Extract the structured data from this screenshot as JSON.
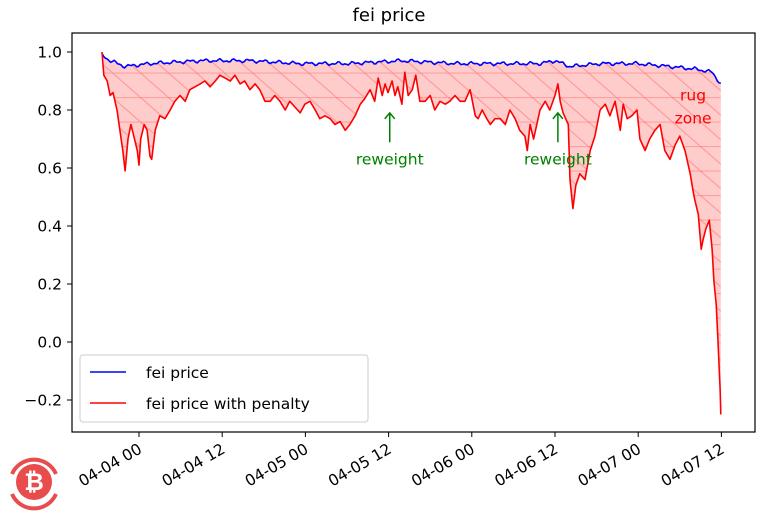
{
  "chart_data": {
    "type": "line",
    "title": "fei price",
    "xlabel": "",
    "ylabel": "",
    "ylim": [
      -0.31,
      1.065
    ],
    "xlim": [
      "04-03 14:20",
      "04-07 16:30"
    ],
    "grid": false,
    "legend_placement": "lower-left",
    "y_ticks": [
      "1.0",
      "0.8",
      "0.6",
      "0.4",
      "0.2",
      "0.0",
      "−0.2"
    ],
    "y_tick_values": [
      1.0,
      0.8,
      0.6,
      0.4,
      0.2,
      0.0,
      -0.2
    ],
    "x_ticks": [
      "04-04 00",
      "04-04 12",
      "04-05 00",
      "04-05 12",
      "04-06 00",
      "04-06 12",
      "04-07 00",
      "04-07 12"
    ],
    "x_tick_values": [
      "04-04 00:00",
      "04-04 12:00",
      "04-05 00:00",
      "04-05 12:00",
      "04-06 00:00",
      "04-06 12:00",
      "04-07 00:00",
      "04-07 12:00"
    ],
    "series": [
      {
        "name": "fei price",
        "color": "#0000ff",
        "x": [
          "04-03 18:40",
          "04-03 19:50",
          "04-03 22:00",
          "04-04 01:35",
          "04-04 08:50",
          "04-04 16:00",
          "04-04 23:15",
          "04-05 06:25",
          "04-05 13:55",
          "04-05 21:35",
          "04-06 04:05",
          "04-06 09:50",
          "04-06 12:00",
          "04-06 14:10",
          "04-06 18:30",
          "04-06 23:50",
          "04-07 04:35",
          "04-07 08:40",
          "04-07 10:40",
          "04-07 11:55"
        ],
        "y": [
          0.99,
          0.97,
          0.95,
          0.96,
          0.97,
          0.97,
          0.96,
          0.96,
          0.97,
          0.96,
          0.96,
          0.96,
          0.97,
          0.95,
          0.96,
          0.96,
          0.95,
          0.94,
          0.93,
          0.89
        ]
      },
      {
        "name": "fei price with penalty",
        "color": "#ff0000",
        "x": [
          "04-03 18:40",
          "04-03 18:55",
          "04-03 19:25",
          "04-03 19:50",
          "04-03 20:15",
          "04-03 20:50",
          "04-03 21:15",
          "04-03 21:40",
          "04-03 22:00",
          "04-03 22:25",
          "04-03 22:50",
          "04-03 23:15",
          "04-03 23:45",
          "04-04 00:00",
          "04-04 00:15",
          "04-04 00:45",
          "04-04 01:10",
          "04-04 01:35",
          "04-04 01:50",
          "04-04 02:20",
          "04-04 03:00",
          "04-04 03:45",
          "04-04 04:30",
          "04-04 05:10",
          "04-04 05:55",
          "04-04 06:40",
          "04-04 07:20",
          "04-04 08:05",
          "04-04 08:50",
          "04-04 09:30",
          "04-04 10:15",
          "04-04 11:00",
          "04-04 11:40",
          "04-04 12:25",
          "04-04 13:10",
          "04-04 13:50",
          "04-04 14:35",
          "04-04 15:15",
          "04-04 16:00",
          "04-04 16:45",
          "04-04 17:25",
          "04-04 18:10",
          "04-04 18:55",
          "04-04 19:35",
          "04-04 20:20",
          "04-04 21:05",
          "04-04 21:45",
          "04-04 22:30",
          "04-04 23:15",
          "04-04 23:55",
          "04-05 00:40",
          "04-05 01:25",
          "04-05 02:05",
          "04-05 02:50",
          "04-05 03:35",
          "04-05 04:15",
          "04-05 05:00",
          "04-05 05:45",
          "04-05 06:25",
          "04-05 07:10",
          "04-05 07:55",
          "04-05 08:35",
          "04-05 09:20",
          "04-05 10:00",
          "04-05 10:30",
          "04-05 11:05",
          "04-05 11:30",
          "04-05 11:55",
          "04-05 12:30",
          "04-05 12:55",
          "04-05 13:20",
          "04-05 13:55",
          "04-05 14:20",
          "04-05 14:50",
          "04-05 15:25",
          "04-05 15:55",
          "04-05 16:30",
          "04-05 17:15",
          "04-05 18:00",
          "04-05 18:40",
          "04-05 19:25",
          "04-05 20:10",
          "04-05 20:50",
          "04-05 21:35",
          "04-05 22:20",
          "04-05 23:00",
          "04-05 23:45",
          "04-06 00:30",
          "04-06 00:55",
          "04-06 01:30",
          "04-06 02:10",
          "04-06 02:40",
          "04-06 03:20",
          "04-06 04:05",
          "04-06 04:50",
          "04-06 05:30",
          "04-06 06:15",
          "04-06 06:55",
          "04-06 07:40",
          "04-06 08:00",
          "04-06 08:25",
          "04-06 08:55",
          "04-06 09:50",
          "04-06 10:35",
          "04-06 11:15",
          "04-06 12:00",
          "04-06 12:25",
          "04-06 12:45",
          "04-06 13:10",
          "04-06 13:55",
          "04-06 14:10",
          "04-06 14:35",
          "04-06 15:00",
          "04-06 15:35",
          "04-06 16:20",
          "04-06 17:05",
          "04-06 17:45",
          "04-06 18:30",
          "04-06 19:15",
          "04-06 19:55",
          "04-06 20:40",
          "04-06 21:25",
          "04-06 21:50",
          "04-06 22:25",
          "04-06 23:05",
          "04-06 23:50",
          "04-07 00:15",
          "04-07 01:00",
          "04-07 01:40",
          "04-07 02:25",
          "04-07 03:10",
          "04-07 03:50",
          "04-07 04:35",
          "04-07 05:20",
          "04-07 06:00",
          "04-07 06:45",
          "04-07 07:30",
          "04-07 07:55",
          "04-07 08:10",
          "04-07 08:40",
          "04-07 09:05",
          "04-07 09:20",
          "04-07 09:45",
          "04-07 10:15",
          "04-07 10:40",
          "04-07 10:55",
          "04-07 11:15",
          "04-07 11:30",
          "04-07 11:50",
          "04-07 11:55"
        ],
        "y": [
          1.0,
          0.92,
          0.9,
          0.85,
          0.86,
          0.8,
          0.73,
          0.66,
          0.59,
          0.7,
          0.75,
          0.71,
          0.66,
          0.61,
          0.7,
          0.75,
          0.73,
          0.64,
          0.63,
          0.73,
          0.78,
          0.77,
          0.8,
          0.83,
          0.85,
          0.83,
          0.87,
          0.88,
          0.89,
          0.9,
          0.88,
          0.9,
          0.92,
          0.91,
          0.9,
          0.92,
          0.89,
          0.9,
          0.87,
          0.89,
          0.87,
          0.83,
          0.83,
          0.85,
          0.83,
          0.8,
          0.83,
          0.81,
          0.79,
          0.82,
          0.83,
          0.8,
          0.77,
          0.78,
          0.77,
          0.75,
          0.76,
          0.73,
          0.75,
          0.78,
          0.82,
          0.84,
          0.87,
          0.83,
          0.91,
          0.85,
          0.89,
          0.86,
          0.9,
          0.85,
          0.88,
          0.82,
          0.93,
          0.85,
          0.87,
          0.92,
          0.83,
          0.83,
          0.85,
          0.8,
          0.83,
          0.82,
          0.83,
          0.85,
          0.83,
          0.83,
          0.87,
          0.78,
          0.77,
          0.8,
          0.77,
          0.75,
          0.77,
          0.77,
          0.75,
          0.8,
          0.77,
          0.73,
          0.71,
          0.66,
          0.75,
          0.7,
          0.8,
          0.83,
          0.8,
          0.85,
          0.89,
          0.83,
          0.79,
          0.75,
          0.56,
          0.46,
          0.54,
          0.58,
          0.56,
          0.66,
          0.71,
          0.8,
          0.82,
          0.78,
          0.83,
          0.73,
          0.82,
          0.77,
          0.78,
          0.8,
          0.7,
          0.66,
          0.7,
          0.73,
          0.75,
          0.66,
          0.63,
          0.68,
          0.71,
          0.66,
          0.58,
          0.52,
          0.49,
          0.44,
          0.32,
          0.35,
          0.39,
          0.42,
          0.32,
          0.21,
          0.13,
          0.01,
          -0.17,
          -0.25
        ]
      }
    ],
    "fill": {
      "between": [
        "fei price",
        "fei price with penalty"
      ],
      "color": "#ff0000",
      "hatch": "diagonal + horizontal"
    },
    "annotations": [
      {
        "text": "reweight",
        "color": "#008000",
        "x": "04-05 12:10",
        "text_y": 0.63,
        "arrow_to": 0.79
      },
      {
        "text": "reweight",
        "color": "#008000",
        "x": "04-06 12:25",
        "text_y": 0.63,
        "arrow_to": 0.79
      },
      {
        "text": "rug",
        "color": "#ff0000",
        "x": "04-07 07:55",
        "y": 0.85
      },
      {
        "text": "zone",
        "color": "#ff0000",
        "x": "04-07 07:55",
        "y": 0.77
      }
    ]
  },
  "watermark": {
    "icon": "bitcoin-logo-icon",
    "color": "#e84c4c",
    "glyph": "₿"
  }
}
